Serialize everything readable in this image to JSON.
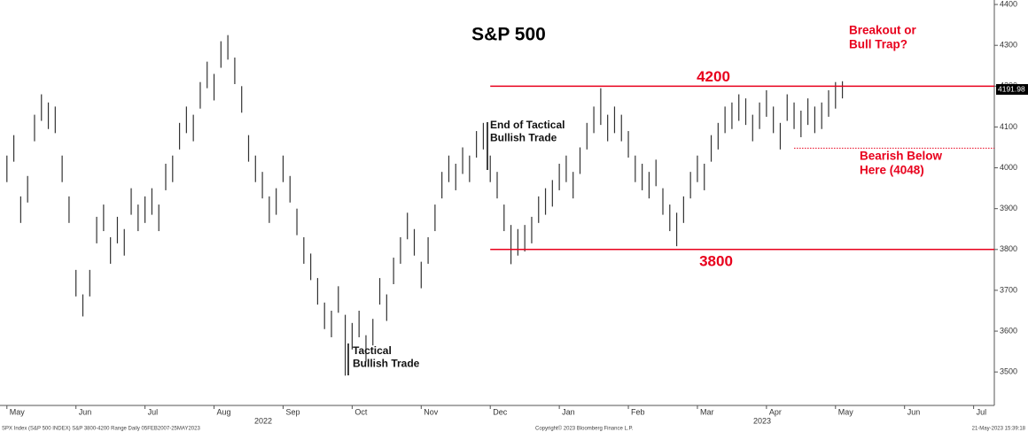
{
  "chart_data": {
    "type": "range_bar",
    "title": "S&P 500",
    "color": "#333333",
    "line_color": "#e8001c",
    "x": [
      0,
      0.1,
      0.2,
      0.3,
      0.4,
      0.5,
      0.6,
      0.7,
      0.8,
      0.9,
      1,
      1.1,
      1.2,
      1.3,
      1.4,
      1.5,
      1.6,
      1.7,
      1.8,
      1.9,
      2,
      2.1,
      2.2,
      2.3,
      2.4,
      2.5,
      2.6,
      2.7,
      2.8,
      2.9,
      3,
      3.1,
      3.2,
      3.3,
      3.4,
      3.5,
      3.6,
      3.7,
      3.8,
      3.9,
      4,
      4.1,
      4.2,
      4.3,
      4.4,
      4.5,
      4.6,
      4.7,
      4.8,
      4.9,
      5,
      5.1,
      5.2,
      5.3,
      5.4,
      5.5,
      5.6,
      5.7,
      5.8,
      5.9,
      6,
      6.1,
      6.2,
      6.3,
      6.4,
      6.5,
      6.6,
      6.7,
      6.8,
      6.9,
      7,
      7.1,
      7.2,
      7.3,
      7.4,
      7.5,
      7.6,
      7.7,
      7.8,
      7.9,
      8,
      8.1,
      8.2,
      8.3,
      8.4,
      8.5,
      8.6,
      8.7,
      8.8,
      8.9,
      9,
      9.1,
      9.2,
      9.3,
      9.4,
      9.5,
      9.6,
      9.7,
      9.8,
      9.9,
      10,
      10.1,
      10.2,
      10.3,
      10.4,
      10.5,
      10.6,
      10.7,
      10.8,
      10.9,
      11,
      11.1,
      11.2,
      11.3,
      11.4,
      11.5,
      11.6,
      11.7,
      11.8,
      11.9,
      12,
      12.1
    ],
    "high": [
      4030,
      4080,
      3930,
      3980,
      4130,
      4180,
      4160,
      4150,
      4030,
      3930,
      3750,
      3690,
      3750,
      3880,
      3910,
      3830,
      3880,
      3850,
      3950,
      3910,
      3930,
      3950,
      3910,
      4010,
      4030,
      4110,
      4150,
      4130,
      4210,
      4260,
      4230,
      4310,
      4325,
      4270,
      4200,
      4080,
      4030,
      3990,
      3930,
      3950,
      4030,
      3980,
      3900,
      3830,
      3790,
      3730,
      3670,
      3650,
      3710,
      3640,
      3620,
      3650,
      3590,
      3630,
      3730,
      3690,
      3780,
      3830,
      3890,
      3850,
      3770,
      3830,
      3910,
      3990,
      4030,
      4010,
      4050,
      4030,
      4090,
      4110,
      4030,
      3990,
      3910,
      3860,
      3850,
      3860,
      3880,
      3930,
      3950,
      3970,
      4010,
      4030,
      3990,
      4050,
      4110,
      4150,
      4195,
      4130,
      4150,
      4130,
      4090,
      4030,
      4010,
      3990,
      4020,
      3950,
      3910,
      3890,
      3930,
      3990,
      4030,
      4010,
      4080,
      4110,
      4150,
      4160,
      4180,
      4170,
      4130,
      4160,
      4190,
      4150,
      4110,
      4180,
      4160,
      4140,
      4170,
      4150,
      4160,
      4190,
      4210,
      4212
    ],
    "low": [
      3965,
      4015,
      3865,
      3915,
      4065,
      4115,
      4095,
      4085,
      3965,
      3865,
      3685,
      3636,
      3685,
      3815,
      3845,
      3765,
      3815,
      3785,
      3885,
      3845,
      3865,
      3885,
      3845,
      3945,
      3965,
      4045,
      4085,
      4065,
      4145,
      4195,
      4165,
      4245,
      4265,
      4205,
      4135,
      4015,
      3965,
      3925,
      3865,
      3885,
      3965,
      3915,
      3835,
      3765,
      3725,
      3665,
      3605,
      3585,
      3645,
      3491,
      3555,
      3585,
      3525,
      3565,
      3665,
      3625,
      3715,
      3765,
      3825,
      3785,
      3705,
      3765,
      3845,
      3925,
      3965,
      3945,
      3985,
      3965,
      4025,
      4045,
      3965,
      3925,
      3845,
      3764,
      3785,
      3795,
      3815,
      3865,
      3885,
      3905,
      3945,
      3965,
      3925,
      3985,
      4045,
      4085,
      4105,
      4065,
      4085,
      4065,
      4025,
      3965,
      3945,
      3925,
      3955,
      3885,
      3845,
      3808,
      3865,
      3925,
      3965,
      3945,
      4015,
      4045,
      4085,
      4095,
      4115,
      4105,
      4065,
      4095,
      4125,
      4085,
      4045,
      4115,
      4095,
      4075,
      4105,
      4085,
      4095,
      4125,
      4145,
      4170
    ],
    "last_value": 4191.98,
    "xlim": [
      -0.1,
      14.3
    ],
    "ylim": [
      3418,
      4411
    ],
    "xticks": [
      {
        "value": 0,
        "label": "May"
      },
      {
        "value": 1,
        "label": "Jun"
      },
      {
        "value": 2,
        "label": "Jul"
      },
      {
        "value": 3,
        "label": "Aug"
      },
      {
        "value": 4,
        "label": "Sep"
      },
      {
        "value": 5,
        "label": "Oct"
      },
      {
        "value": 6,
        "label": "Nov"
      },
      {
        "value": 7,
        "label": "Dec"
      },
      {
        "value": 8,
        "label": "Jan"
      },
      {
        "value": 9,
        "label": "Feb"
      },
      {
        "value": 10,
        "label": "Mar"
      },
      {
        "value": 11,
        "label": "Apr"
      },
      {
        "value": 12,
        "label": "May"
      },
      {
        "value": 13,
        "label": "Jun"
      },
      {
        "value": 14,
        "label": "Jul"
      }
    ],
    "year_labels": [
      "2022",
      "2023"
    ],
    "yticks": [
      3500,
      3600,
      3700,
      3800,
      3900,
      4000,
      4100,
      4200,
      4300,
      4400
    ],
    "reference_lines": [
      {
        "value": 4200,
        "style": "solid",
        "from_x": 7.0
      },
      {
        "value": 3800,
        "style": "solid",
        "from_x": 7.0
      },
      {
        "value": 4048,
        "style": "dotted",
        "from_x": 11.4
      }
    ],
    "annotations": [
      {
        "lines": [
          "Breakout or",
          "Bull Trap?"
        ],
        "color": "#e8001c"
      },
      {
        "lines": [
          "Bearish Below",
          "Here (4048)"
        ],
        "color": "#e8001c"
      },
      {
        "lines": [
          "End of Tactical",
          "Bullish Trade"
        ],
        "color": "#111111"
      },
      {
        "lines": [
          "Tactical",
          "Bullish Trade"
        ],
        "color": "#111111"
      }
    ],
    "footer": {
      "left": "SPX Index (S&P 500 INDEX) S&P 3800-4200 Range  Daily 05FEB2007-25MAY2023",
      "center": "Copyright© 2023 Bloomberg Finance L.P.",
      "right": "21-May-2023 15:39:18"
    }
  }
}
